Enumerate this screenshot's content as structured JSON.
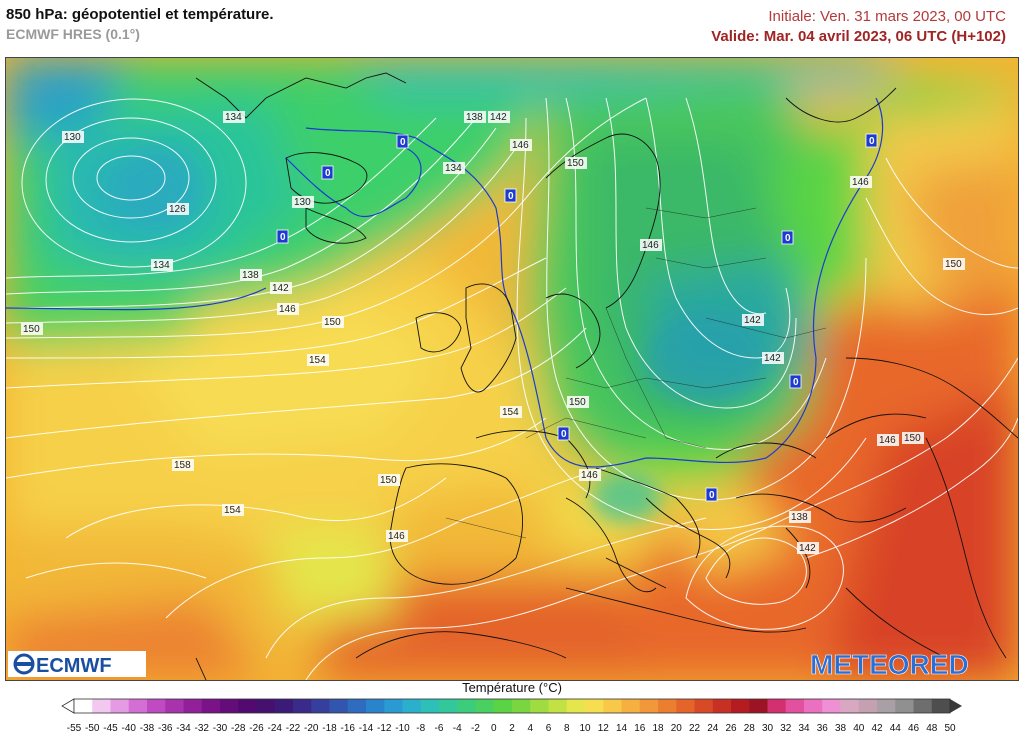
{
  "header": {
    "title": "850 hPa: géopotentiel et température.",
    "model": "ECMWF HRES (0.1°)",
    "initial": "Initiale: Ven. 31 mars 2023, 00 UTC",
    "valid": "Valide: Mar. 04 avril 2023, 06 UTC (H+102)"
  },
  "logos": {
    "left": "ECMWF",
    "right": "METEORED"
  },
  "legend": {
    "title": "Température (°C)",
    "ticks": [
      "-55",
      "-50",
      "-45",
      "-40",
      "-38",
      "-36",
      "-34",
      "-32",
      "-30",
      "-28",
      "-26",
      "-24",
      "-22",
      "-20",
      "-18",
      "-16",
      "-14",
      "-12",
      "-10",
      "-8",
      "-6",
      "-4",
      "-2",
      "0",
      "2",
      "4",
      "6",
      "8",
      "10",
      "12",
      "14",
      "16",
      "18",
      "20",
      "22",
      "24",
      "26",
      "28",
      "30",
      "32",
      "34",
      "36",
      "38",
      "40",
      "42",
      "44",
      "46",
      "48",
      "50"
    ],
    "colors": [
      "#ffffff",
      "#f2c8f0",
      "#e49be4",
      "#d46dd4",
      "#c04ac2",
      "#a932ad",
      "#92209a",
      "#7a1288",
      "#640c7a",
      "#520a70",
      "#45106e",
      "#3c1a78",
      "#3a2a8a",
      "#36409c",
      "#3256ae",
      "#2e6cc0",
      "#2a84cc",
      "#2a9ad2",
      "#2ab0cc",
      "#2cc0b8",
      "#32c89c",
      "#3ccd7c",
      "#4ad060",
      "#5ad444",
      "#7ad640",
      "#9edc40",
      "#c2e244",
      "#e4e64c",
      "#f6de50",
      "#f8c848",
      "#f6b040",
      "#f29838",
      "#ec7e30",
      "#e4642a",
      "#d84a26",
      "#c83024",
      "#b41c22",
      "#9c1424",
      "#d43070",
      "#e450a0",
      "#ec70c0",
      "#f090d4",
      "#d8a8c0",
      "#c4a0b0",
      "#a8a0a4",
      "#909090",
      "#6e6e6e",
      "#4e4e4e"
    ]
  },
  "contour_labels": [
    {
      "text": "130",
      "name": "label-130-west"
    },
    {
      "text": "134",
      "name": "label-134-greenland"
    },
    {
      "text": "126",
      "name": "label-126-low"
    },
    {
      "text": "134",
      "name": "label-134-south"
    },
    {
      "text": "130",
      "name": "label-130-iceland"
    },
    {
      "text": "138",
      "name": "label-138-west"
    },
    {
      "text": "142",
      "name": "label-142-west"
    },
    {
      "text": "146",
      "name": "label-146-west"
    },
    {
      "text": "150",
      "name": "label-150-west"
    },
    {
      "text": "150",
      "name": "label-150-mid"
    },
    {
      "text": "154",
      "name": "label-154-mid"
    },
    {
      "text": "138",
      "name": "label-138-north"
    },
    {
      "text": "142",
      "name": "label-142-north"
    },
    {
      "text": "134",
      "name": "label-134-norway"
    },
    {
      "text": "146",
      "name": "label-146-norway"
    },
    {
      "text": "150",
      "name": "label-150-scandinavia"
    },
    {
      "text": "146",
      "name": "label-146-baltic"
    },
    {
      "text": "146",
      "name": "label-146-russia"
    },
    {
      "text": "150",
      "name": "label-150-east"
    },
    {
      "text": "142",
      "name": "label-142-poland"
    },
    {
      "text": "142",
      "name": "label-142-ukraine"
    },
    {
      "text": "154",
      "name": "label-154-biscay"
    },
    {
      "text": "150",
      "name": "label-150-france"
    },
    {
      "text": "158",
      "name": "label-158-atlantic"
    },
    {
      "text": "154",
      "name": "label-154-atlantic"
    },
    {
      "text": "150",
      "name": "label-150-iberia"
    },
    {
      "text": "146",
      "name": "label-146-iberia"
    },
    {
      "text": "146",
      "name": "label-146-italy"
    },
    {
      "text": "146",
      "name": "label-146-turkey"
    },
    {
      "text": "150",
      "name": "label-150-turkey"
    },
    {
      "text": "138",
      "name": "label-138-greece"
    },
    {
      "text": "142",
      "name": "label-142-aegean"
    }
  ],
  "zero_labels": [
    {
      "text": "0",
      "name": "zero-label-iceland"
    },
    {
      "text": "0",
      "name": "zero-label-greenland-1"
    },
    {
      "text": "0",
      "name": "zero-label-greenland-2"
    },
    {
      "text": "0",
      "name": "zero-label-norway"
    },
    {
      "text": "0",
      "name": "zero-label-russia-north"
    },
    {
      "text": "0",
      "name": "zero-label-russia"
    },
    {
      "text": "0",
      "name": "zero-label-ukraine"
    },
    {
      "text": "0",
      "name": "zero-label-alps"
    },
    {
      "text": "0",
      "name": "zero-label-balkans"
    }
  ]
}
